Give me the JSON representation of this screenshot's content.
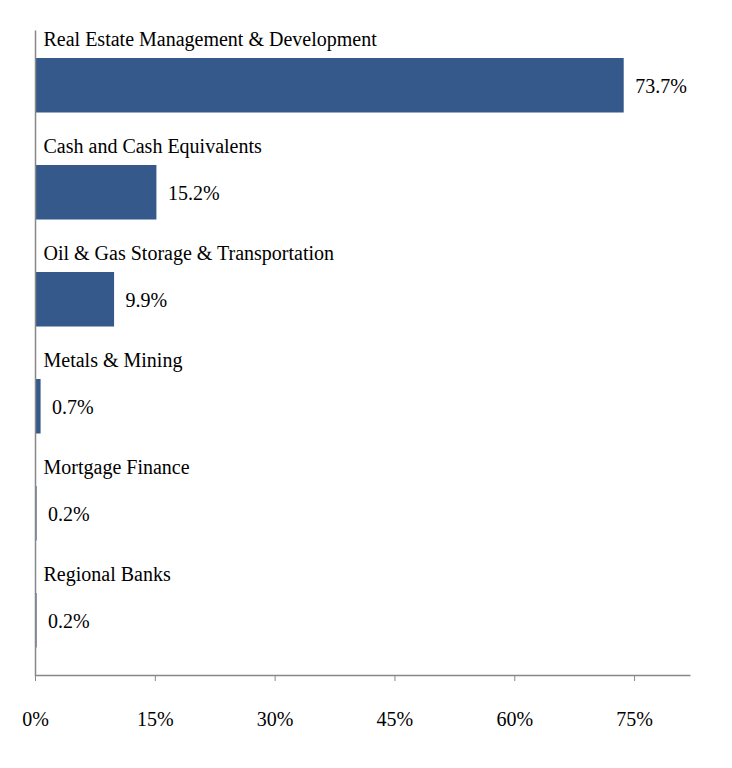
{
  "chart_data": {
    "type": "bar",
    "orientation": "horizontal",
    "categories": [
      "Real Estate Management & Development",
      "Cash and Cash Equivalents",
      "Oil & Gas Storage & Transportation",
      "Metals & Mining",
      "Mortgage Finance",
      "Regional Banks"
    ],
    "values": [
      73.7,
      15.2,
      9.9,
      0.7,
      0.2,
      0.2
    ],
    "value_labels": [
      "73.7%",
      "15.2%",
      "9.9%",
      "0.7%",
      "0.2%",
      "0.2%"
    ],
    "color": "#34598a",
    "xlim": [
      0,
      82
    ],
    "xticks": [
      {
        "value": 0,
        "label": "0%"
      },
      {
        "value": 15,
        "label": "15%"
      },
      {
        "value": 30,
        "label": "30%"
      },
      {
        "value": 45,
        "label": "45%"
      },
      {
        "value": 60,
        "label": "60%"
      },
      {
        "value": 75,
        "label": "75%"
      }
    ],
    "data_labels": true,
    "grid": false,
    "tick_labels": "x"
  }
}
